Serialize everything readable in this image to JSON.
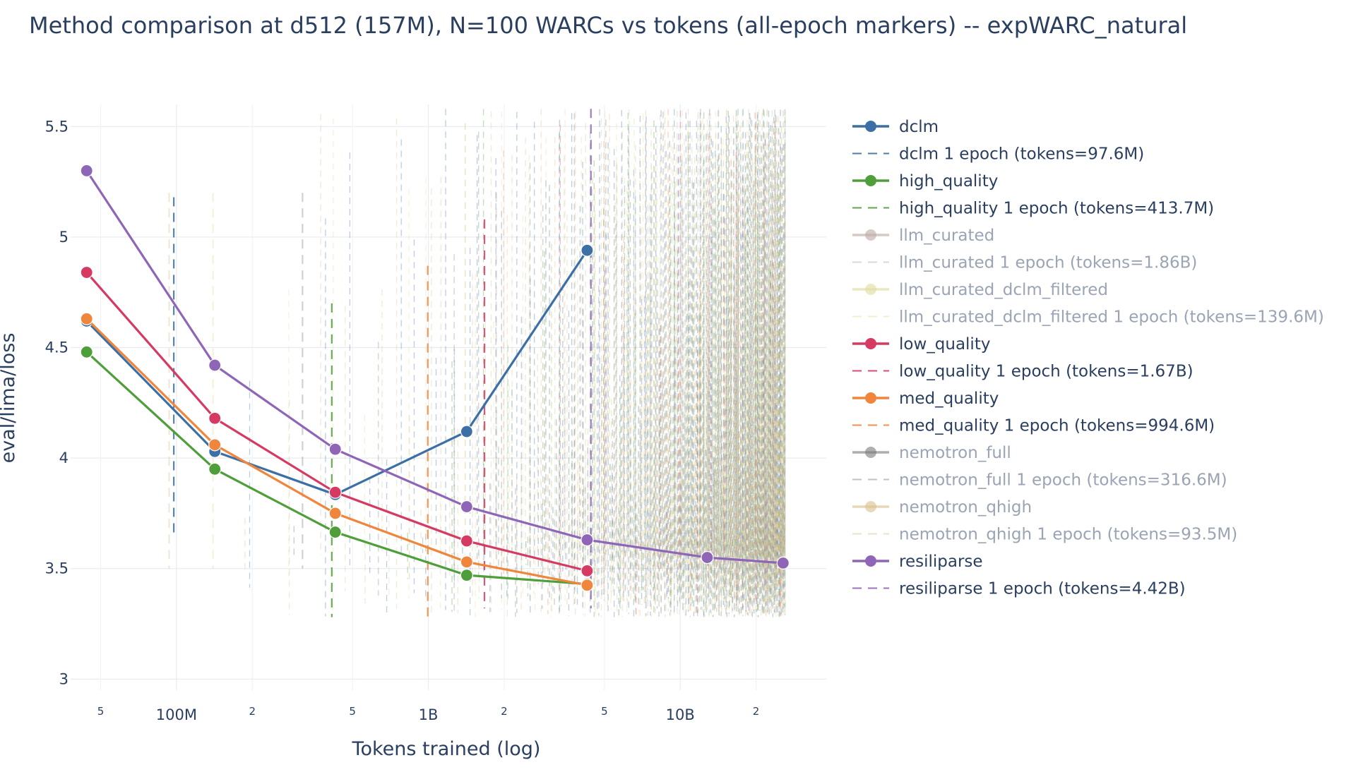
{
  "chart_data": {
    "type": "line",
    "title": "Method comparison at d512 (157M), N=100 WARCs vs tokens (all-epoch markers) -- expWARC_natural",
    "xlabel": "Tokens trained (log)",
    "ylabel": "eval/lima/loss",
    "x_scale": "log",
    "xlim": [
      38000000,
      38000000000
    ],
    "ylim": [
      2.95,
      5.6
    ],
    "grid": true,
    "legend_position": "right",
    "x_ticks": [
      {
        "value": 50000000,
        "label": "5",
        "minor": true
      },
      {
        "value": 100000000,
        "label": "100M",
        "minor": false
      },
      {
        "value": 200000000,
        "label": "2",
        "minor": true
      },
      {
        "value": 500000000,
        "label": "5",
        "minor": true
      },
      {
        "value": 1000000000,
        "label": "1B",
        "minor": false
      },
      {
        "value": 2000000000,
        "label": "2",
        "minor": true
      },
      {
        "value": 5000000000,
        "label": "5",
        "minor": true
      },
      {
        "value": 10000000000,
        "label": "10B",
        "minor": false
      },
      {
        "value": 20000000000,
        "label": "2",
        "minor": true
      }
    ],
    "y_ticks": [
      {
        "value": 3,
        "label": "3"
      },
      {
        "value": 3.5,
        "label": "3.5"
      },
      {
        "value": 4,
        "label": "4"
      },
      {
        "value": 4.5,
        "label": "4.5"
      },
      {
        "value": 5,
        "label": "5"
      },
      {
        "value": 5.5,
        "label": "5.5"
      }
    ],
    "series": [
      {
        "name": "dclm",
        "color": "#3b6fa5",
        "visible": true,
        "epoch_label": "dclm 1 epoch (tokens=97.6M)",
        "epoch_tokens": 97600000,
        "epoch_line": [
          3.65,
          5.18
        ],
        "x": [
          44000000,
          142000000,
          427000000,
          1420000000,
          4270000000
        ],
        "y": [
          4.62,
          4.03,
          3.835,
          4.12,
          4.94
        ]
      },
      {
        "name": "high_quality",
        "color": "#4e9e3a",
        "visible": true,
        "epoch_label": "high_quality 1 epoch (tokens=413.7M)",
        "epoch_tokens": 413700000,
        "epoch_line": [
          3.28,
          4.7
        ],
        "x": [
          44000000,
          142000000,
          427000000,
          1420000000,
          4270000000
        ],
        "y": [
          4.48,
          3.95,
          3.665,
          3.47,
          3.43
        ]
      },
      {
        "name": "llm_curated",
        "color": "#bca8a3",
        "visible": false,
        "epoch_label": "llm_curated 1 epoch (tokens=1.86B)",
        "epoch_tokens": 1860000000,
        "x": [],
        "y": []
      },
      {
        "name": "llm_curated_dclm_filtered",
        "color": "#e0dc9a",
        "visible": false,
        "epoch_label": "llm_curated_dclm_filtered 1 epoch (tokens=139.6M)",
        "epoch_tokens": 139600000,
        "x": [],
        "y": []
      },
      {
        "name": "low_quality",
        "color": "#d63a62",
        "visible": true,
        "epoch_label": "low_quality 1 epoch (tokens=1.67B)",
        "epoch_tokens": 1670000000,
        "epoch_line": [
          3.32,
          5.08
        ],
        "x": [
          44000000,
          142000000,
          427000000,
          1420000000,
          4270000000
        ],
        "y": [
          4.84,
          4.18,
          3.845,
          3.625,
          3.49
        ]
      },
      {
        "name": "med_quality",
        "color": "#f0863b",
        "visible": true,
        "epoch_label": "med_quality 1 epoch (tokens=994.6M)",
        "epoch_tokens": 994600000,
        "epoch_line": [
          3.26,
          4.87
        ],
        "x": [
          44000000,
          142000000,
          427000000,
          1420000000,
          4270000000
        ],
        "y": [
          4.63,
          4.06,
          3.75,
          3.53,
          3.425
        ]
      },
      {
        "name": "nemotron_full",
        "color": "#7a7a7a",
        "visible": false,
        "epoch_label": "nemotron_full 1 epoch (tokens=316.6M)",
        "epoch_tokens": 316600000,
        "x": [],
        "y": []
      },
      {
        "name": "nemotron_qhigh",
        "color": "#d7c08c",
        "visible": false,
        "epoch_label": "nemotron_qhigh 1 epoch (tokens=93.5M)",
        "epoch_tokens": 93500000,
        "x": [],
        "y": []
      },
      {
        "name": "resiliparse",
        "color": "#8f66b7",
        "visible": true,
        "epoch_label": "resiliparse 1 epoch (tokens=4.42B)",
        "epoch_tokens": 4420000000,
        "epoch_line": [
          3.32,
          5.58
        ],
        "x": [
          44000000,
          142000000,
          427000000,
          1420000000,
          4270000000,
          12800000000,
          25600000000
        ],
        "y": [
          5.3,
          4.42,
          4.04,
          3.78,
          3.63,
          3.55,
          3.525
        ]
      }
    ]
  }
}
